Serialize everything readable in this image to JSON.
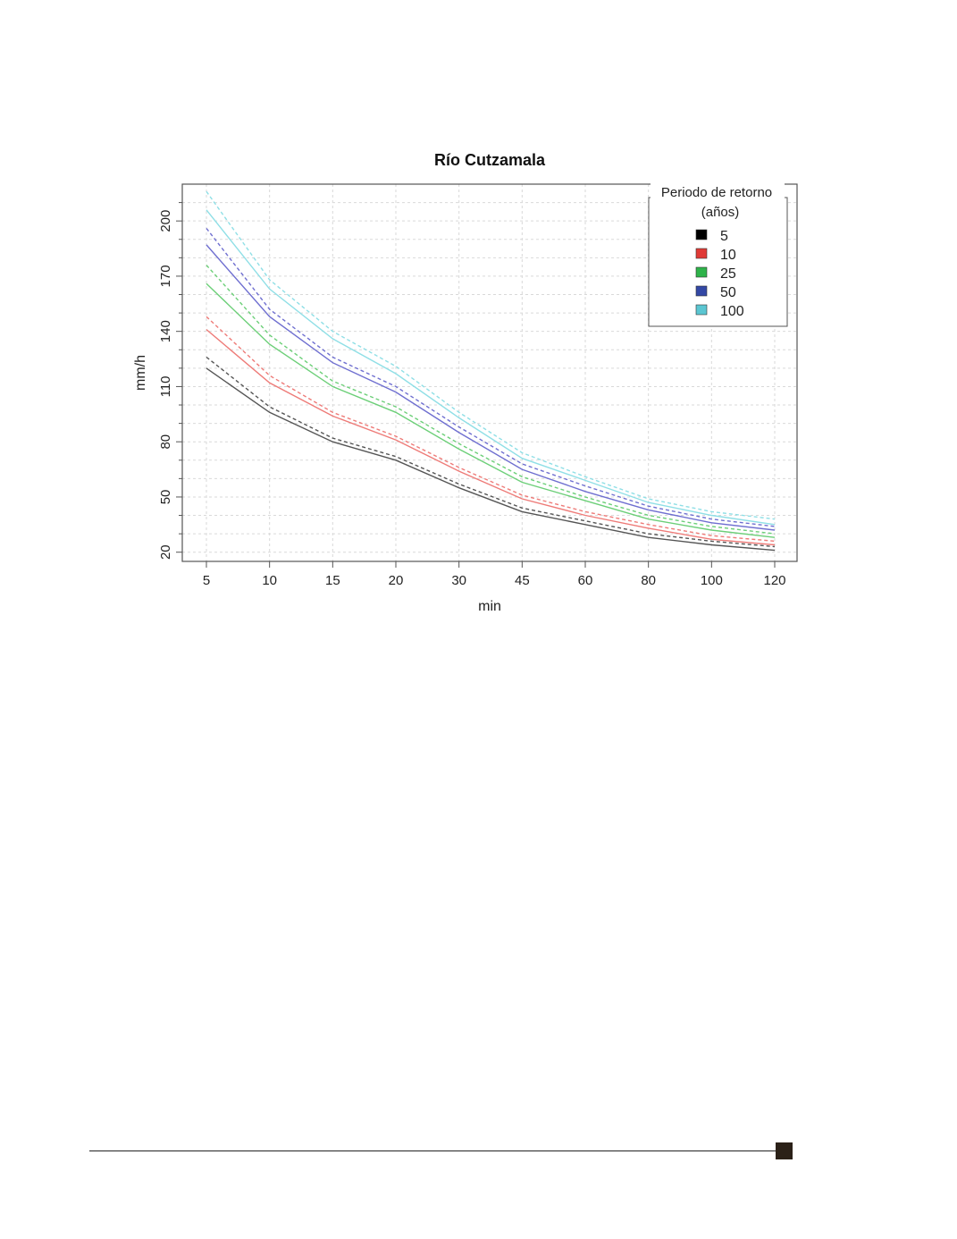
{
  "chart_data": {
    "type": "line",
    "title": "Río Cutzamala",
    "xlabel": "min",
    "ylabel": "mm/h",
    "categories": [
      "5",
      "10",
      "15",
      "20",
      "30",
      "45",
      "60",
      "80",
      "100",
      "120"
    ],
    "x_spacing": "categorical",
    "ylim": [
      15,
      220
    ],
    "yticks": [
      20,
      50,
      80,
      110,
      140,
      170,
      200
    ],
    "grid": true,
    "legend": {
      "title_line1": "Periodo de retorno",
      "title_line2": "(años)",
      "placement": "top-right",
      "entries": [
        {
          "label": "5",
          "swatch_color": "#000000"
        },
        {
          "label": "10",
          "swatch_color": "#e03a36"
        },
        {
          "label": "25",
          "swatch_color": "#2eb34a"
        },
        {
          "label": "50",
          "swatch_color": "#3348a5"
        },
        {
          "label": "100",
          "swatch_color": "#5bc6d2"
        }
      ]
    },
    "series": [
      {
        "period": "5",
        "style": "solid",
        "color": "#555555",
        "values": [
          120,
          96,
          80,
          70,
          55,
          42,
          35,
          28,
          24,
          21
        ]
      },
      {
        "period": "5",
        "style": "dashed",
        "color": "#555555",
        "values": [
          126,
          99,
          82,
          72,
          57,
          44,
          37,
          30,
          26,
          23
        ]
      },
      {
        "period": "10",
        "style": "solid",
        "color": "#ee7b78",
        "values": [
          141,
          112,
          94,
          81,
          64,
          49,
          40,
          33,
          27,
          24
        ]
      },
      {
        "period": "10",
        "style": "dashed",
        "color": "#ee7b78",
        "values": [
          148,
          116,
          96,
          83,
          66,
          51,
          42,
          35,
          29,
          26
        ]
      },
      {
        "period": "25",
        "style": "solid",
        "color": "#6ccf78",
        "values": [
          166,
          133,
          110,
          96,
          76,
          58,
          48,
          38,
          32,
          28
        ]
      },
      {
        "period": "25",
        "style": "dashed",
        "color": "#6ccf78",
        "values": [
          176,
          138,
          113,
          99,
          79,
          61,
          50,
          40,
          34,
          30
        ]
      },
      {
        "period": "50",
        "style": "solid",
        "color": "#6f6fd0",
        "values": [
          187,
          148,
          123,
          107,
          85,
          65,
          53,
          43,
          36,
          32
        ]
      },
      {
        "period": "50",
        "style": "dashed",
        "color": "#6f6fd0",
        "values": [
          196,
          152,
          126,
          110,
          88,
          68,
          56,
          45,
          38,
          34
        ]
      },
      {
        "period": "100",
        "style": "solid",
        "color": "#8fdfe6",
        "values": [
          206,
          163,
          136,
          117,
          93,
          71,
          59,
          47,
          40,
          35
        ]
      },
      {
        "period": "100",
        "style": "dashed",
        "color": "#8fdfe6",
        "values": [
          216,
          168,
          140,
          121,
          96,
          74,
          61,
          49,
          42,
          38
        ]
      }
    ]
  }
}
